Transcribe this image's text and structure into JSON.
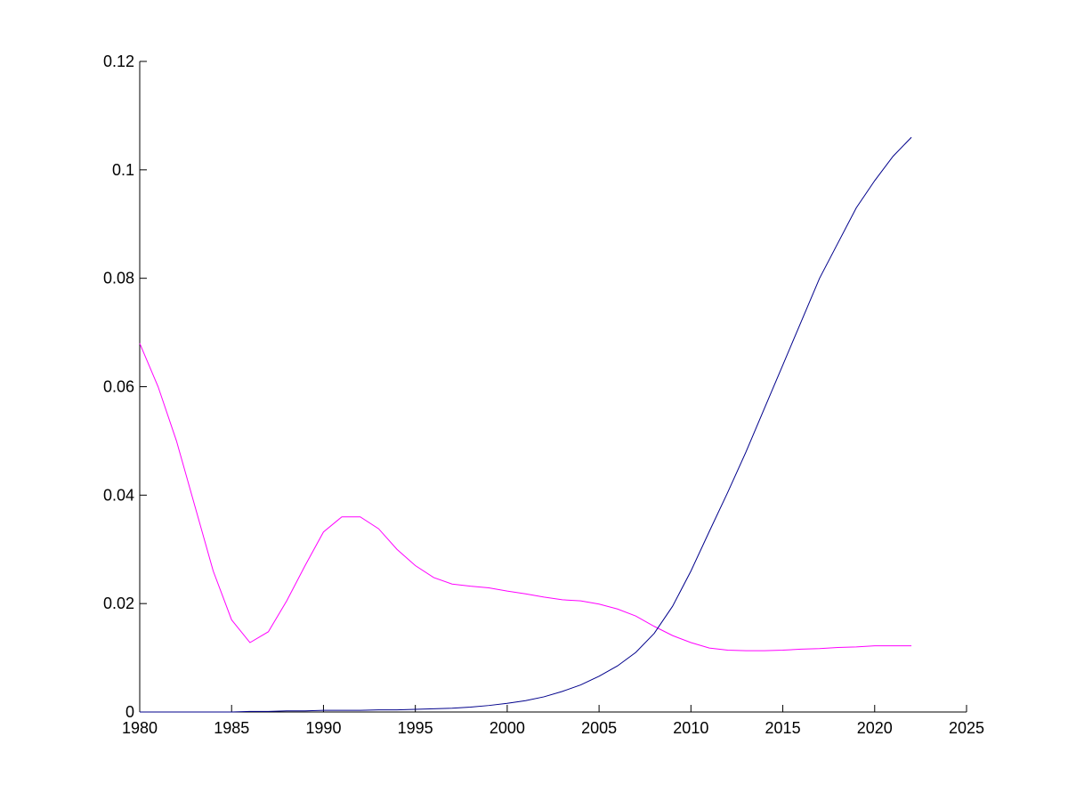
{
  "chart_data": {
    "type": "line",
    "x": [
      1980,
      1981,
      1982,
      1983,
      1984,
      1985,
      1986,
      1987,
      1988,
      1989,
      1990,
      1991,
      1992,
      1993,
      1994,
      1995,
      1996,
      1997,
      1998,
      1999,
      2000,
      2001,
      2002,
      2003,
      2004,
      2005,
      2006,
      2007,
      2008,
      2009,
      2010,
      2011,
      2012,
      2013,
      2014,
      2015,
      2016,
      2017,
      2018,
      2019,
      2020,
      2021,
      2022
    ],
    "series": [
      {
        "color": "#ff00ff",
        "values": [
          0.068,
          0.06,
          0.05,
          0.038,
          0.026,
          0.017,
          0.0128,
          0.0148,
          0.0205,
          0.027,
          0.0332,
          0.036,
          0.036,
          0.0338,
          0.03,
          0.027,
          0.0248,
          0.0236,
          0.0232,
          0.0229,
          0.0223,
          0.0218,
          0.0212,
          0.0207,
          0.0205,
          0.0199,
          0.019,
          0.0177,
          0.0158,
          0.0141,
          0.0128,
          0.0118,
          0.0114,
          0.0113,
          0.0113,
          0.0114,
          0.0116,
          0.0117,
          0.0119,
          0.012,
          0.0122,
          0.0122,
          0.0122
        ]
      },
      {
        "color": "#00008b",
        "values": [
          0,
          0,
          0,
          0,
          0,
          0,
          0.0001,
          0.0001,
          0.0002,
          0.0002,
          0.0003,
          0.0003,
          0.0003,
          0.0004,
          0.0004,
          0.0005,
          0.0006,
          0.0007,
          0.0009,
          0.0012,
          0.0016,
          0.0021,
          0.0028,
          0.0038,
          0.005,
          0.0066,
          0.0085,
          0.011,
          0.0145,
          0.0195,
          0.026,
          0.0333,
          0.0405,
          0.048,
          0.056,
          0.064,
          0.072,
          0.08,
          0.0865,
          0.093,
          0.098,
          0.1025,
          0.106
        ]
      }
    ],
    "xlim": [
      1980,
      2025
    ],
    "xticks": [
      1980,
      1985,
      1990,
      1995,
      2000,
      2005,
      2010,
      2015,
      2020,
      2025
    ],
    "ylim": [
      0,
      0.12
    ],
    "yticks": [
      0,
      0.02,
      0.04,
      0.06,
      0.08,
      0.1,
      0.12
    ]
  }
}
